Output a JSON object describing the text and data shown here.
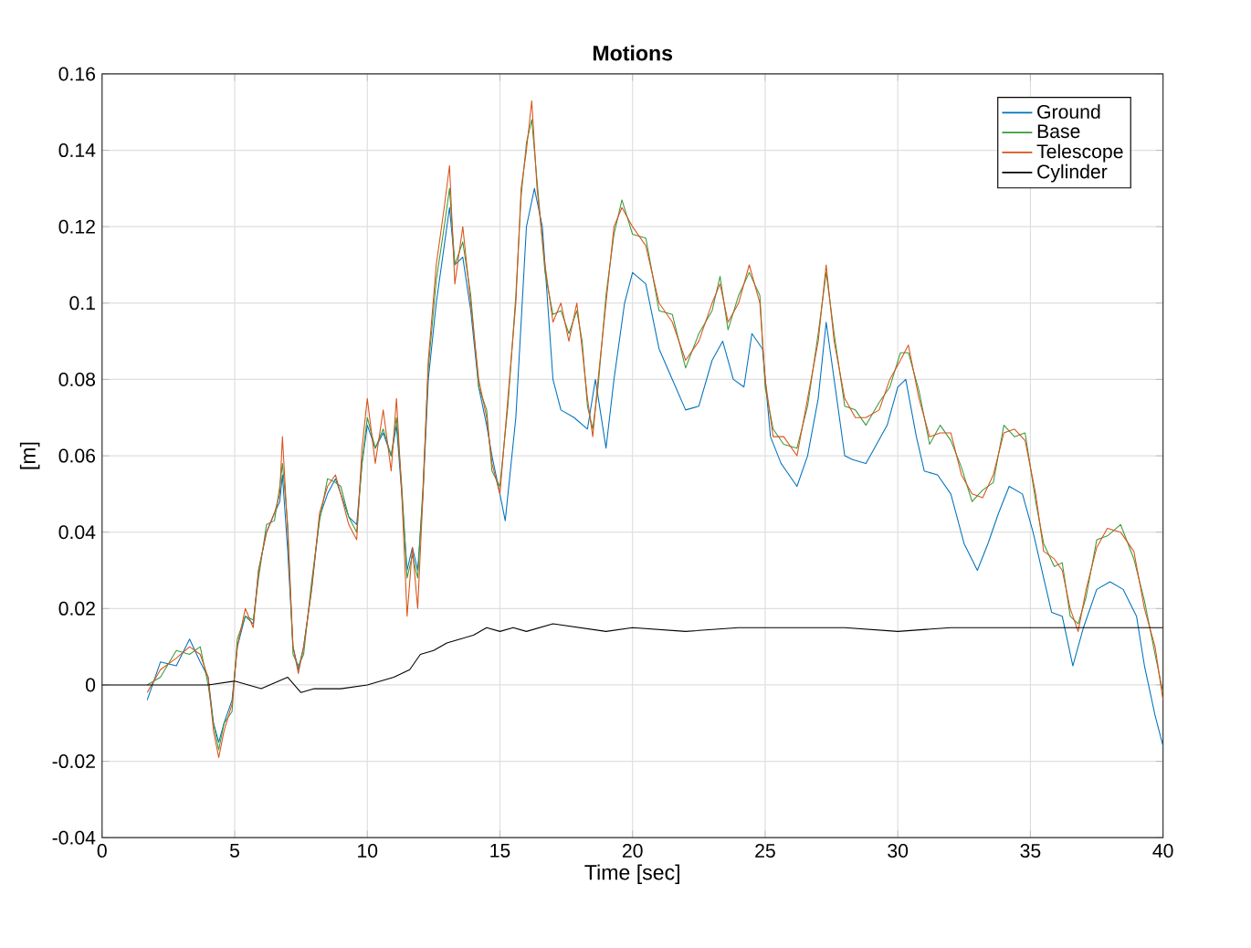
{
  "chart_data": {
    "type": "line",
    "title": "Motions",
    "xlabel": "Time [sec]",
    "ylabel": "[m]",
    "xlim": [
      0,
      40
    ],
    "ylim": [
      -0.04,
      0.16
    ],
    "xticks": [
      0,
      5,
      10,
      15,
      20,
      25,
      30,
      35,
      40
    ],
    "yticks": [
      -0.04,
      -0.02,
      0,
      0.02,
      0.04,
      0.06,
      0.08,
      0.1,
      0.12,
      0.14,
      0.16
    ],
    "grid": true,
    "legend": "top right",
    "marker": "none",
    "line_style": "solid",
    "series": [
      {
        "name": "Ground",
        "color": "#0072bd",
        "x": [
          1.7,
          2.2,
          2.8,
          3.3,
          3.7,
          4.0,
          4.2,
          4.4,
          4.6,
          4.9,
          5.1,
          5.4,
          5.7,
          5.9,
          6.2,
          6.5,
          6.7,
          6.8,
          7.0,
          7.2,
          7.4,
          7.6,
          7.9,
          8.2,
          8.5,
          8.8,
          9.0,
          9.3,
          9.6,
          9.8,
          10.0,
          10.3,
          10.6,
          10.9,
          11.1,
          11.3,
          11.5,
          11.7,
          11.9,
          12.1,
          12.3,
          12.6,
          12.9,
          13.1,
          13.3,
          13.6,
          13.9,
          14.2,
          14.5,
          14.7,
          15.0,
          15.2,
          15.6,
          16.0,
          16.3,
          16.6,
          17.0,
          17.3,
          17.8,
          18.3,
          18.6,
          19.0,
          19.3,
          19.7,
          20.0,
          20.5,
          21.0,
          21.5,
          22.0,
          22.5,
          23.0,
          23.4,
          23.8,
          24.2,
          24.5,
          24.9,
          25.2,
          25.6,
          26.2,
          26.6,
          27.0,
          27.3,
          27.6,
          28.0,
          28.3,
          28.8,
          29.2,
          29.6,
          30.0,
          30.3,
          30.7,
          31.0,
          31.5,
          32.0,
          32.5,
          33.0,
          33.4,
          33.8,
          34.2,
          34.7,
          35.1,
          35.5,
          35.8,
          36.2,
          36.6,
          37.0,
          37.5,
          38.0,
          38.5,
          39.0,
          39.3,
          39.7,
          40.0
        ],
        "values": [
          -0.004,
          0.006,
          0.005,
          0.012,
          0.006,
          0.002,
          -0.01,
          -0.015,
          -0.01,
          -0.004,
          0.01,
          0.018,
          0.016,
          0.03,
          0.04,
          0.045,
          0.048,
          0.055,
          0.035,
          0.01,
          0.004,
          0.01,
          0.025,
          0.044,
          0.05,
          0.054,
          0.05,
          0.044,
          0.042,
          0.058,
          0.068,
          0.062,
          0.066,
          0.06,
          0.068,
          0.05,
          0.03,
          0.036,
          0.03,
          0.05,
          0.08,
          0.1,
          0.115,
          0.125,
          0.11,
          0.112,
          0.098,
          0.078,
          0.068,
          0.06,
          0.05,
          0.043,
          0.07,
          0.12,
          0.13,
          0.12,
          0.08,
          0.072,
          0.07,
          0.067,
          0.08,
          0.062,
          0.08,
          0.1,
          0.108,
          0.105,
          0.088,
          0.08,
          0.072,
          0.073,
          0.085,
          0.09,
          0.08,
          0.078,
          0.092,
          0.088,
          0.065,
          0.058,
          0.052,
          0.06,
          0.075,
          0.095,
          0.08,
          0.06,
          0.059,
          0.058,
          0.063,
          0.068,
          0.078,
          0.08,
          0.065,
          0.056,
          0.055,
          0.05,
          0.037,
          0.03,
          0.037,
          0.045,
          0.052,
          0.05,
          0.04,
          0.028,
          0.019,
          0.018,
          0.005,
          0.015,
          0.025,
          0.027,
          0.025,
          0.018,
          0.005,
          -0.008,
          -0.016
        ]
      },
      {
        "name": "Base",
        "color": "#3a9a3a",
        "x": [
          1.7,
          2.2,
          2.8,
          3.3,
          3.7,
          4.0,
          4.2,
          4.4,
          4.6,
          4.9,
          5.1,
          5.4,
          5.7,
          5.9,
          6.2,
          6.5,
          6.7,
          6.8,
          7.0,
          7.2,
          7.4,
          7.6,
          7.9,
          8.2,
          8.5,
          8.8,
          9.0,
          9.3,
          9.6,
          9.8,
          10.0,
          10.3,
          10.6,
          10.9,
          11.1,
          11.3,
          11.5,
          11.7,
          11.9,
          12.1,
          12.3,
          12.6,
          12.9,
          13.1,
          13.3,
          13.6,
          13.9,
          14.2,
          14.5,
          14.7,
          15.0,
          15.3,
          15.6,
          15.8,
          16.0,
          16.2,
          16.4,
          16.7,
          17.0,
          17.3,
          17.6,
          17.9,
          18.1,
          18.3,
          18.5,
          18.7,
          19.0,
          19.3,
          19.6,
          20.0,
          20.5,
          21.0,
          21.5,
          22.0,
          22.5,
          23.0,
          23.3,
          23.6,
          24.0,
          24.4,
          24.8,
          25.0,
          25.3,
          25.7,
          26.2,
          26.6,
          27.0,
          27.3,
          27.6,
          28.0,
          28.4,
          28.8,
          29.3,
          29.7,
          30.1,
          30.4,
          30.8,
          31.2,
          31.6,
          32.0,
          32.4,
          32.8,
          33.2,
          33.6,
          34.0,
          34.4,
          34.8,
          35.2,
          35.5,
          35.9,
          36.2,
          36.5,
          36.8,
          37.1,
          37.5,
          37.9,
          38.4,
          38.9,
          39.3,
          39.7,
          40.0
        ],
        "values": [
          0.0,
          0.002,
          0.009,
          0.008,
          0.01,
          0.0,
          -0.01,
          -0.017,
          -0.01,
          -0.007,
          0.012,
          0.018,
          0.017,
          0.028,
          0.042,
          0.043,
          0.052,
          0.058,
          0.042,
          0.008,
          0.005,
          0.008,
          0.027,
          0.043,
          0.054,
          0.053,
          0.052,
          0.044,
          0.04,
          0.058,
          0.07,
          0.062,
          0.067,
          0.06,
          0.07,
          0.052,
          0.028,
          0.034,
          0.028,
          0.052,
          0.083,
          0.106,
          0.12,
          0.13,
          0.11,
          0.116,
          0.102,
          0.078,
          0.072,
          0.056,
          0.052,
          0.073,
          0.102,
          0.128,
          0.142,
          0.148,
          0.132,
          0.108,
          0.097,
          0.098,
          0.092,
          0.098,
          0.09,
          0.073,
          0.067,
          0.078,
          0.102,
          0.118,
          0.127,
          0.118,
          0.117,
          0.098,
          0.097,
          0.083,
          0.092,
          0.098,
          0.107,
          0.093,
          0.102,
          0.108,
          0.102,
          0.078,
          0.067,
          0.063,
          0.062,
          0.073,
          0.092,
          0.108,
          0.092,
          0.073,
          0.072,
          0.068,
          0.074,
          0.078,
          0.087,
          0.087,
          0.077,
          0.063,
          0.068,
          0.064,
          0.057,
          0.048,
          0.051,
          0.053,
          0.068,
          0.065,
          0.066,
          0.048,
          0.037,
          0.031,
          0.032,
          0.018,
          0.016,
          0.023,
          0.038,
          0.039,
          0.042,
          0.033,
          0.022,
          0.008,
          -0.002
        ]
      },
      {
        "name": "Telescope",
        "color": "#d95319",
        "x": [
          1.7,
          2.2,
          2.8,
          3.3,
          3.7,
          4.0,
          4.2,
          4.4,
          4.6,
          4.9,
          5.1,
          5.4,
          5.7,
          5.9,
          6.2,
          6.5,
          6.7,
          6.8,
          7.0,
          7.2,
          7.4,
          7.6,
          7.9,
          8.2,
          8.5,
          8.8,
          9.0,
          9.3,
          9.6,
          9.8,
          10.0,
          10.3,
          10.6,
          10.9,
          11.1,
          11.3,
          11.5,
          11.7,
          11.9,
          12.1,
          12.3,
          12.6,
          12.9,
          13.1,
          13.3,
          13.6,
          13.9,
          14.2,
          14.5,
          14.7,
          15.0,
          15.3,
          15.6,
          15.8,
          16.0,
          16.2,
          16.4,
          16.7,
          17.0,
          17.3,
          17.6,
          17.9,
          18.1,
          18.3,
          18.5,
          18.7,
          19.0,
          19.3,
          19.6,
          20.0,
          20.5,
          21.0,
          21.5,
          22.0,
          22.5,
          23.0,
          23.3,
          23.6,
          24.0,
          24.4,
          24.8,
          25.0,
          25.3,
          25.7,
          26.2,
          26.6,
          27.0,
          27.3,
          27.6,
          28.0,
          28.4,
          28.8,
          29.3,
          29.7,
          30.1,
          30.4,
          30.8,
          31.2,
          31.6,
          32.0,
          32.4,
          32.8,
          33.2,
          33.6,
          34.0,
          34.4,
          34.8,
          35.2,
          35.5,
          35.9,
          36.2,
          36.5,
          36.8,
          37.1,
          37.5,
          37.9,
          38.4,
          38.9,
          39.3,
          39.7,
          40.0
        ],
        "values": [
          -0.002,
          0.004,
          0.007,
          0.01,
          0.008,
          0.002,
          -0.012,
          -0.019,
          -0.012,
          -0.005,
          0.01,
          0.02,
          0.015,
          0.03,
          0.04,
          0.045,
          0.05,
          0.065,
          0.04,
          0.01,
          0.003,
          0.01,
          0.025,
          0.045,
          0.052,
          0.055,
          0.05,
          0.042,
          0.038,
          0.062,
          0.075,
          0.058,
          0.072,
          0.056,
          0.075,
          0.05,
          0.018,
          0.036,
          0.02,
          0.05,
          0.085,
          0.11,
          0.125,
          0.136,
          0.105,
          0.12,
          0.1,
          0.08,
          0.07,
          0.058,
          0.05,
          0.075,
          0.1,
          0.13,
          0.14,
          0.153,
          0.13,
          0.11,
          0.095,
          0.1,
          0.09,
          0.1,
          0.088,
          0.075,
          0.065,
          0.08,
          0.1,
          0.12,
          0.125,
          0.12,
          0.115,
          0.1,
          0.095,
          0.085,
          0.09,
          0.1,
          0.105,
          0.095,
          0.1,
          0.11,
          0.1,
          0.08,
          0.065,
          0.065,
          0.06,
          0.075,
          0.09,
          0.11,
          0.09,
          0.075,
          0.07,
          0.07,
          0.072,
          0.08,
          0.085,
          0.089,
          0.075,
          0.065,
          0.066,
          0.066,
          0.055,
          0.05,
          0.049,
          0.055,
          0.066,
          0.067,
          0.064,
          0.05,
          0.035,
          0.033,
          0.03,
          0.02,
          0.014,
          0.025,
          0.036,
          0.041,
          0.04,
          0.035,
          0.02,
          0.01,
          -0.004
        ]
      },
      {
        "name": "Cylinder",
        "color": "#000000",
        "x": [
          0,
          2,
          4,
          5,
          6,
          7,
          7.5,
          8,
          9,
          10,
          11,
          11.6,
          12,
          12.5,
          13,
          13.5,
          14,
          14.5,
          15,
          15.5,
          16,
          17,
          18,
          19,
          20,
          22,
          24,
          26,
          28,
          30,
          32,
          34,
          36,
          38,
          40
        ],
        "values": [
          0,
          0,
          0,
          0.001,
          -0.001,
          0.002,
          -0.002,
          -0.001,
          -0.001,
          0,
          0.002,
          0.004,
          0.008,
          0.009,
          0.011,
          0.012,
          0.013,
          0.015,
          0.014,
          0.015,
          0.014,
          0.016,
          0.015,
          0.014,
          0.015,
          0.014,
          0.015,
          0.015,
          0.015,
          0.014,
          0.015,
          0.015,
          0.015,
          0.015,
          0.015
        ]
      }
    ]
  }
}
